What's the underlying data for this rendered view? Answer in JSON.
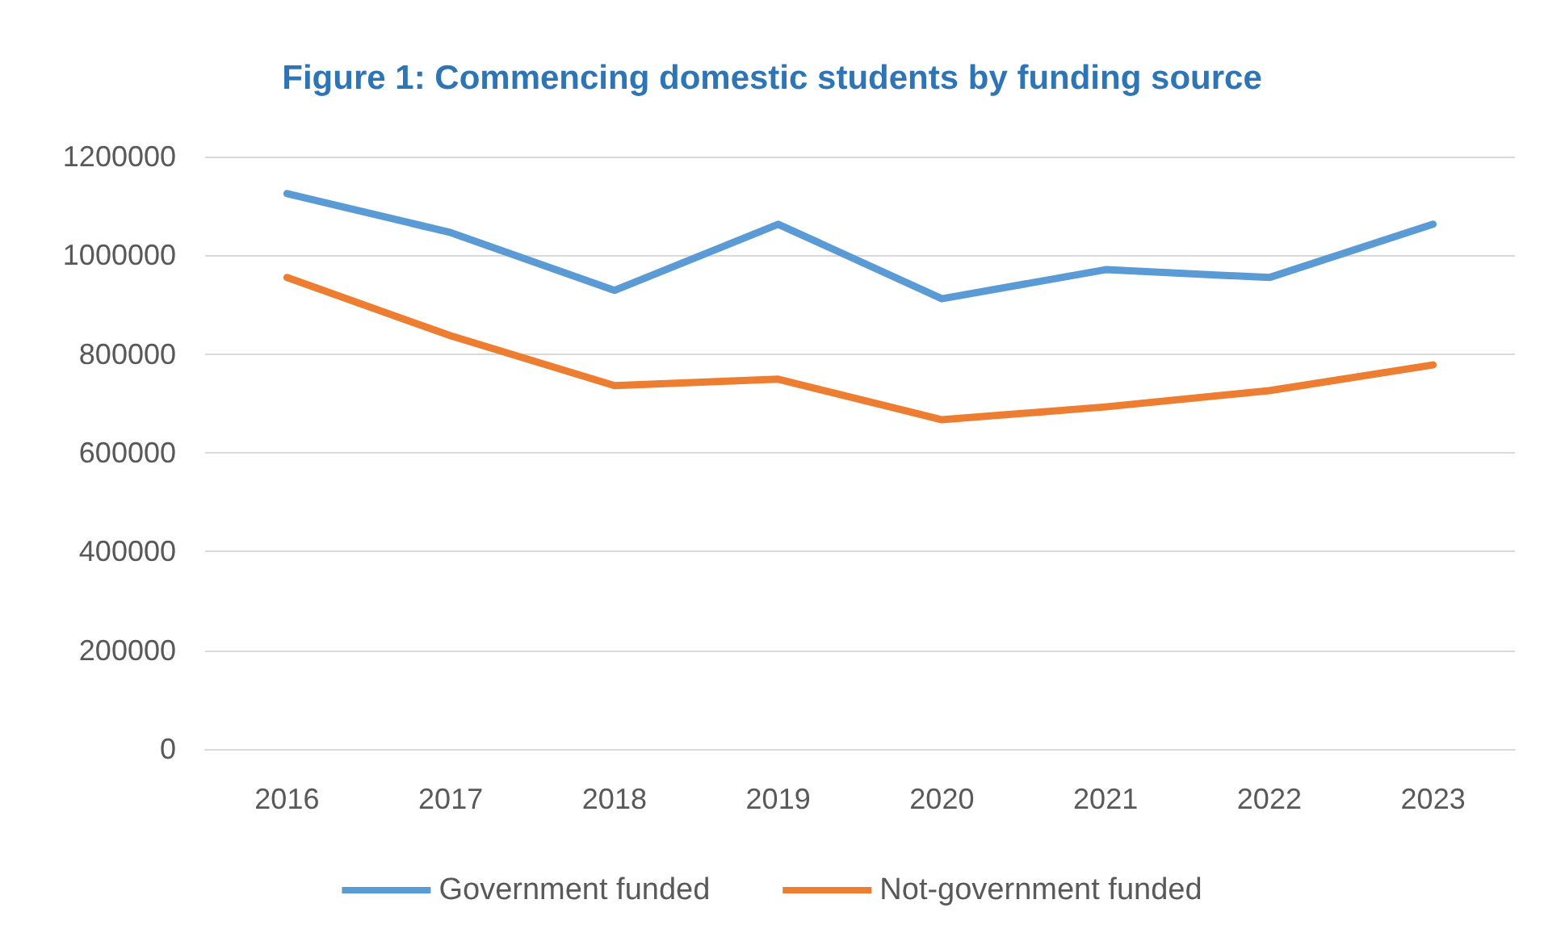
{
  "chart_data": {
    "type": "line",
    "title": "Figure 1: Commencing domestic students by funding source",
    "categories": [
      "2016",
      "2017",
      "2018",
      "2019",
      "2020",
      "2021",
      "2022",
      "2023"
    ],
    "series": [
      {
        "name": "Government funded",
        "color": "#5b9bd5",
        "values": [
          1125000,
          1046000,
          929000,
          1063000,
          912000,
          971000,
          955000,
          1063000
        ]
      },
      {
        "name": "Not-government funded",
        "color": "#ed7d31",
        "values": [
          955000,
          837000,
          736000,
          749000,
          667000,
          693000,
          726000,
          778000
        ]
      }
    ],
    "ylim": [
      0,
      1200000
    ],
    "yticks": [
      0,
      200000,
      400000,
      600000,
      800000,
      1000000,
      1200000
    ],
    "grid": "y",
    "legend": "bottom",
    "marker": "none",
    "line_style": "solid"
  }
}
